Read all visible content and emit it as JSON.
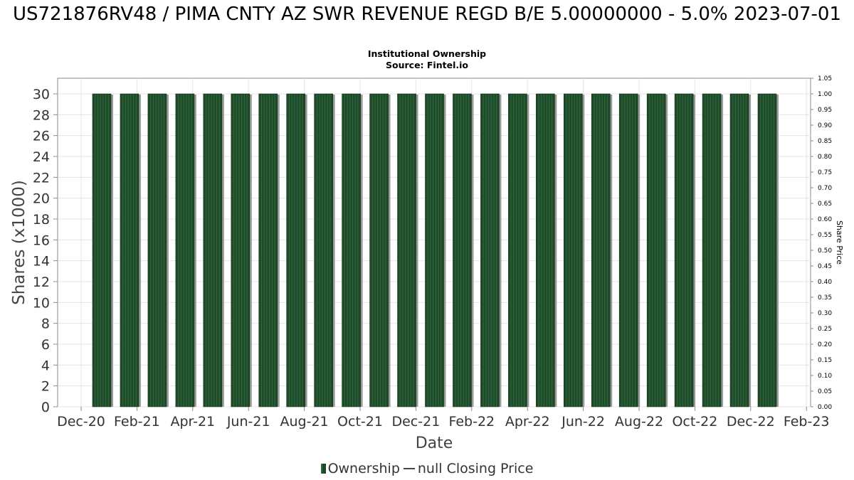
{
  "chart_data": {
    "type": "bar",
    "title": "US721876RV48 / PIMA CNTY AZ SWR REVENUE REGD B/E 5.00000000 - 5.0% 2023-07-01",
    "subtitle": [
      "Institutional Ownership",
      "Source: Fintel.io"
    ],
    "xlabel": "Date",
    "ylabel": "Shares (x1000)",
    "y2label": "Share Price",
    "x_ticks": [
      "Dec-20",
      "Feb-21",
      "Apr-21",
      "Jun-21",
      "Aug-21",
      "Oct-21",
      "Dec-21",
      "Feb-22",
      "Apr-22",
      "Jun-22",
      "Aug-22",
      "Oct-22",
      "Dec-22",
      "Feb-23"
    ],
    "ylim": [
      0,
      31.5
    ],
    "y_ticks": [
      0,
      2,
      4,
      6,
      8,
      10,
      12,
      14,
      16,
      18,
      20,
      22,
      24,
      26,
      28,
      30
    ],
    "y2lim": [
      0,
      1.05
    ],
    "y2_ticks": [
      "0.00",
      "0.05",
      "0.10",
      "0.15",
      "0.20",
      "0.25",
      "0.30",
      "0.35",
      "0.40",
      "0.45",
      "0.50",
      "0.55",
      "0.60",
      "0.65",
      "0.70",
      "0.75",
      "0.80",
      "0.85",
      "0.90",
      "0.95",
      "1.00",
      "1.05"
    ],
    "grid": true,
    "legend_position": "bottom",
    "series": [
      {
        "name": "Ownership",
        "color": "#1f4a2a",
        "values": [
          30,
          30,
          30,
          30,
          30,
          30,
          30,
          30,
          30,
          30,
          30,
          30,
          30,
          30,
          30,
          30,
          30,
          30,
          30,
          30,
          30,
          30,
          30,
          30,
          30
        ]
      },
      {
        "name": "null Closing Price",
        "color": "#444444",
        "values": []
      }
    ]
  }
}
